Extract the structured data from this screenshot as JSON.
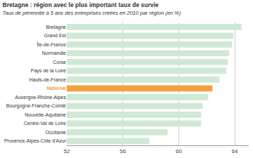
{
  "chart_data": {
    "type": "bar",
    "orientation": "horizontal",
    "title": "Bretagne : région avec le plus important taux de survie",
    "subtitle": "Taux de pérennité à 5 ans des entreprises créées en 2010 par région (en %)",
    "categories": [
      "Bretagne",
      "Grand Est",
      "Île-de-France",
      "Normandie",
      "Corse",
      "Pays de la Loire",
      "Hauts-de-France",
      "National",
      "Auvergne-Rhône-Alpes",
      "Bourgogne-Franche-Comté",
      "Nouvelle-Aquitaine",
      "Centre-Val de Loire",
      "Occitanie",
      "Provence-Alpes-Côte d'Azur"
    ],
    "values": [
      64.5,
      63.9,
      63.8,
      63.6,
      63.5,
      63.4,
      62.9,
      62.4,
      62.1,
      61.7,
      61.6,
      61.6,
      59.2,
      57.9
    ],
    "colors": [
      "#cfe9d4",
      "#cfe9d4",
      "#cfe9d4",
      "#cfe9d4",
      "#cfe9d4",
      "#cfe9d4",
      "#cfe9d4",
      "#f5a040",
      "#cfe9d4",
      "#cfe9d4",
      "#cfe9d4",
      "#cfe9d4",
      "#cfe9d4",
      "#cfe9d4"
    ],
    "xlim": [
      52,
      65
    ],
    "xticks": [
      52,
      56,
      60,
      64
    ],
    "grid": true
  }
}
